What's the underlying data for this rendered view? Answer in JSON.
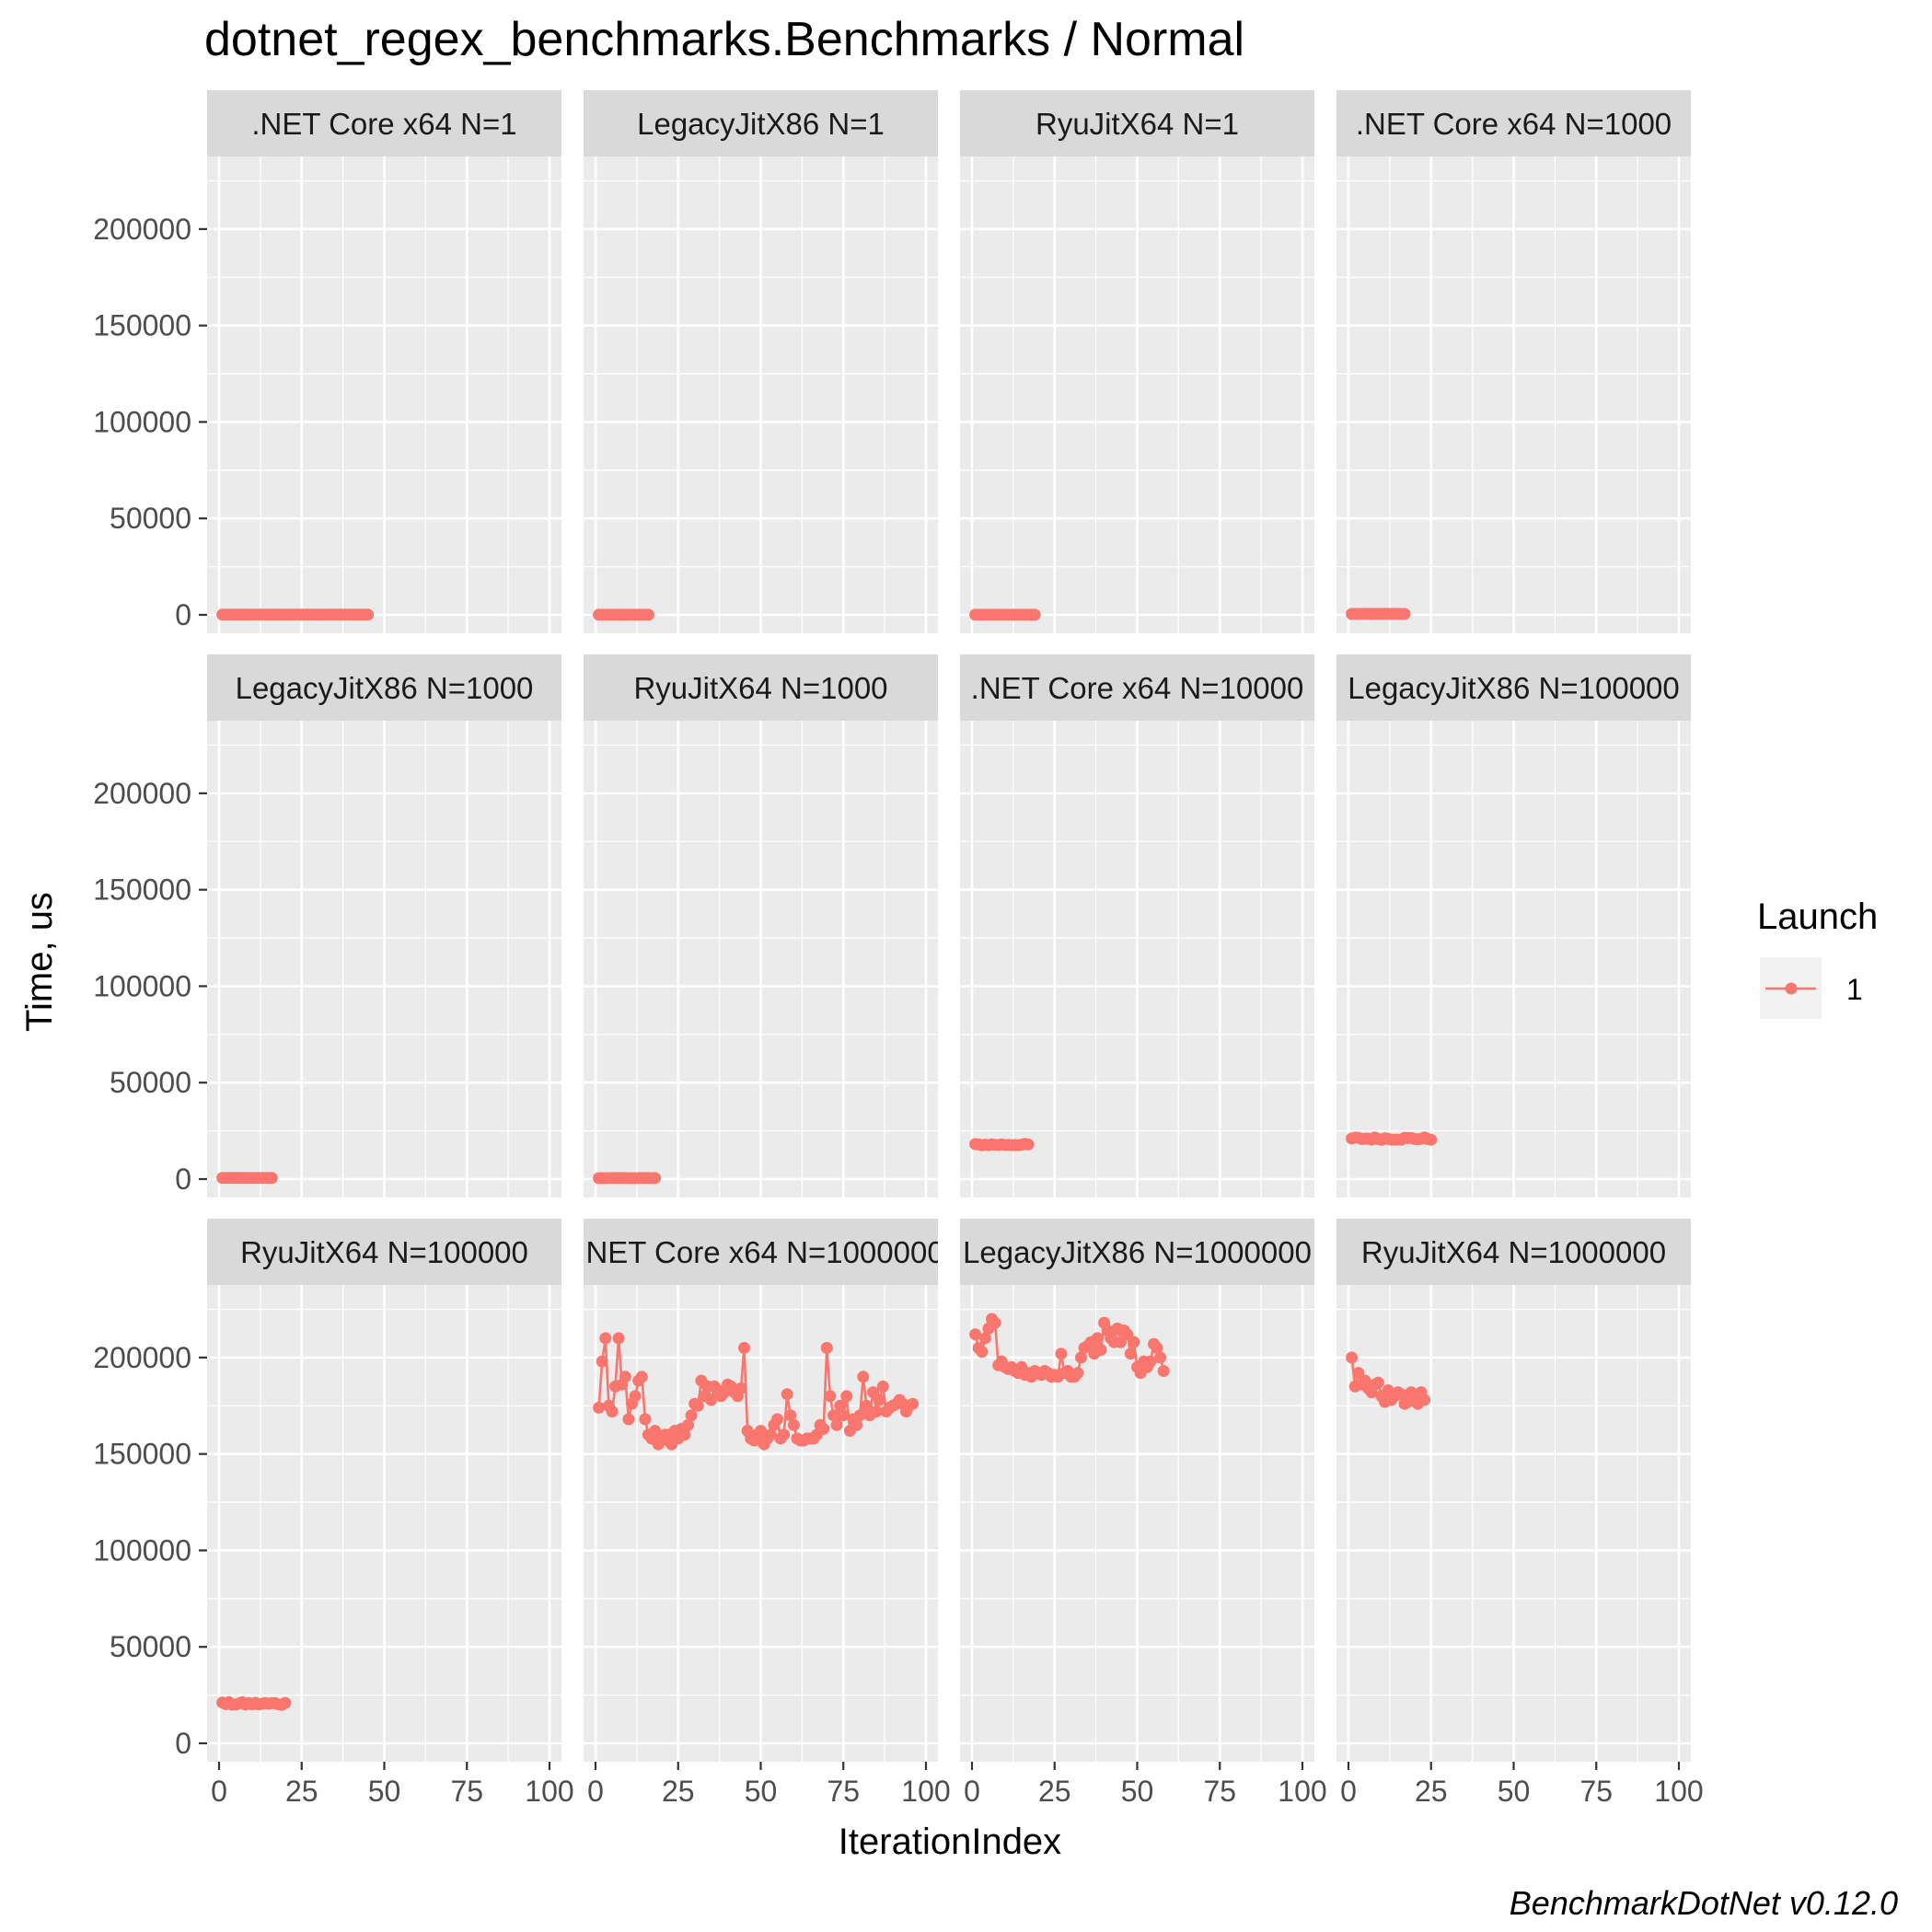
{
  "chart_data": {
    "type": "line",
    "title": "dotnet_regex_benchmarks.Benchmarks / Normal",
    "xlabel": "IterationIndex",
    "ylabel": "Time, us",
    "xlim": [
      0,
      100
    ],
    "ylim": [
      0,
      230000
    ],
    "x_ticks": [
      0,
      25,
      50,
      75,
      100
    ],
    "x_tick_labels": [
      "0",
      "25",
      "50",
      "75",
      "100"
    ],
    "y_ticks": [
      0,
      50000,
      100000,
      150000,
      200000
    ],
    "y_tick_labels": [
      "0",
      "50000",
      "100000",
      "150000",
      "200000"
    ],
    "grid": true,
    "legend": {
      "title": "Launch",
      "position": "right",
      "entries": [
        {
          "label": "1",
          "color": "#F8766D"
        }
      ]
    },
    "caption": "BenchmarkDotNet v0.12.0",
    "series_color": "#F8766D",
    "panels": [
      {
        "label": ".NET Core x64 N=1",
        "series": [
          {
            "name": "1",
            "n": 45,
            "level": 80,
            "noise": 3
          }
        ]
      },
      {
        "label": "LegacyJitX86 N=1",
        "series": [
          {
            "name": "1",
            "n": 16,
            "level": 60,
            "noise": 2
          }
        ]
      },
      {
        "label": "RyuJitX64 N=1",
        "series": [
          {
            "name": "1",
            "n": 19,
            "level": 60,
            "noise": 2
          }
        ]
      },
      {
        "label": ".NET Core x64 N=1000",
        "series": [
          {
            "name": "1",
            "n": 17,
            "level": 500,
            "noise": 20
          }
        ]
      },
      {
        "label": "LegacyJitX86 N=1000",
        "series": [
          {
            "name": "1",
            "n": 16,
            "level": 600,
            "noise": 20
          }
        ]
      },
      {
        "label": "RyuJitX64 N=1000",
        "series": [
          {
            "name": "1",
            "n": 18,
            "level": 500,
            "noise": 20
          }
        ]
      },
      {
        "label": ".NET Core x64 N=10000",
        "series": [
          {
            "name": "1",
            "n": 17,
            "level": 17800,
            "noise": 400
          }
        ]
      },
      {
        "label": "LegacyJitX86 N=100000",
        "series": [
          {
            "name": "1",
            "n": 25,
            "level": 21000,
            "noise": 700
          }
        ]
      },
      {
        "label": "RyuJitX64 N=100000",
        "series": [
          {
            "name": "1",
            "n": 20,
            "level": 20500,
            "noise": 800
          }
        ]
      },
      {
        "label": ".NET Core x64 N=1000000",
        "series": [
          {
            "name": "1",
            "x": [
              1,
              2,
              3,
              4,
              5,
              6,
              7,
              8,
              9,
              10,
              11,
              12,
              13,
              14,
              15,
              16,
              17,
              18,
              19,
              20,
              21,
              22,
              23,
              24,
              25,
              26,
              27,
              28,
              29,
              30,
              31,
              32,
              33,
              34,
              35,
              36,
              37,
              38,
              39,
              40,
              41,
              42,
              43,
              44,
              45,
              46,
              47,
              48,
              49,
              50,
              51,
              52,
              53,
              54,
              55,
              56,
              57,
              58,
              59,
              60,
              61,
              62,
              63,
              64,
              65,
              66,
              67,
              68,
              69,
              70,
              71,
              72,
              73,
              74,
              75,
              76,
              77,
              78,
              79,
              80,
              81,
              82,
              83,
              84,
              85,
              86,
              87,
              88,
              89,
              90,
              91,
              92,
              93,
              94,
              95,
              96
            ],
            "values": [
              174000,
              198000,
              210000,
              175000,
              172000,
              185000,
              210000,
              186000,
              190000,
              168000,
              176000,
              180000,
              188000,
              190000,
              168000,
              160000,
              158000,
              162000,
              155000,
              157000,
              160000,
              160000,
              155000,
              162000,
              158000,
              163000,
              160000,
              165000,
              170000,
              176000,
              175000,
              188000,
              180000,
              185000,
              178000,
              185000,
              183000,
              180000,
              182000,
              186000,
              185000,
              182000,
              180000,
              184000,
              205000,
              162000,
              158000,
              157000,
              160000,
              162000,
              155000,
              158000,
              160000,
              165000,
              168000,
              158000,
              160000,
              181000,
              170000,
              165000,
              158000,
              157000,
              157000,
              158000,
              158000,
              158000,
              160000,
              165000,
              163000,
              205000,
              180000,
              170000,
              165000,
              175000,
              170000,
              180000,
              162000,
              168000,
              165000,
              170000,
              190000,
              175000,
              170000,
              182000,
              172000,
              178000,
              185000,
              172000,
              174000,
              175000,
              176000,
              178000,
              176000,
              172000,
              175000,
              176000
            ]
          }
        ]
      },
      {
        "label": "LegacyJitX86 N=1000000",
        "series": [
          {
            "name": "1",
            "x": [
              1,
              2,
              3,
              4,
              5,
              6,
              7,
              8,
              9,
              10,
              11,
              12,
              13,
              14,
              15,
              16,
              17,
              18,
              19,
              20,
              21,
              22,
              23,
              24,
              25,
              26,
              27,
              28,
              29,
              30,
              31,
              32,
              33,
              34,
              35,
              36,
              37,
              38,
              39,
              40,
              41,
              42,
              43,
              44,
              45,
              46,
              47,
              48,
              49,
              50,
              51,
              52,
              53,
              54,
              55,
              56,
              57,
              58
            ],
            "values": [
              212000,
              205000,
              203000,
              210000,
              215000,
              220000,
              218000,
              196000,
              198000,
              195000,
              194000,
              195000,
              193000,
              192000,
              195000,
              191000,
              192000,
              190000,
              193000,
              192000,
              191000,
              193000,
              192000,
              190000,
              191000,
              190000,
              202000,
              192000,
              193000,
              190000,
              190000,
              192000,
              200000,
              205000,
              206000,
              208000,
              202000,
              210000,
              204000,
              218000,
              214000,
              210000,
              208000,
              215000,
              208000,
              214000,
              212000,
              202000,
              208000,
              195000,
              192000,
              198000,
              195000,
              198000,
              207000,
              205000,
              200000,
              193000
            ]
          }
        ]
      },
      {
        "label": "RyuJitX64 N=1000000",
        "series": [
          {
            "name": "1",
            "x": [
              1,
              2,
              3,
              4,
              5,
              6,
              7,
              8,
              9,
              10,
              11,
              12,
              13,
              14,
              15,
              16,
              17,
              18,
              19,
              20,
              21,
              22,
              23
            ],
            "values": [
              200000,
              185000,
              192000,
              186000,
              188000,
              184000,
              182000,
              186000,
              187000,
              180000,
              177000,
              183000,
              178000,
              180000,
              182000,
              181000,
              176000,
              177000,
              182000,
              178000,
              176000,
              182000,
              178000
            ]
          }
        ]
      }
    ]
  }
}
